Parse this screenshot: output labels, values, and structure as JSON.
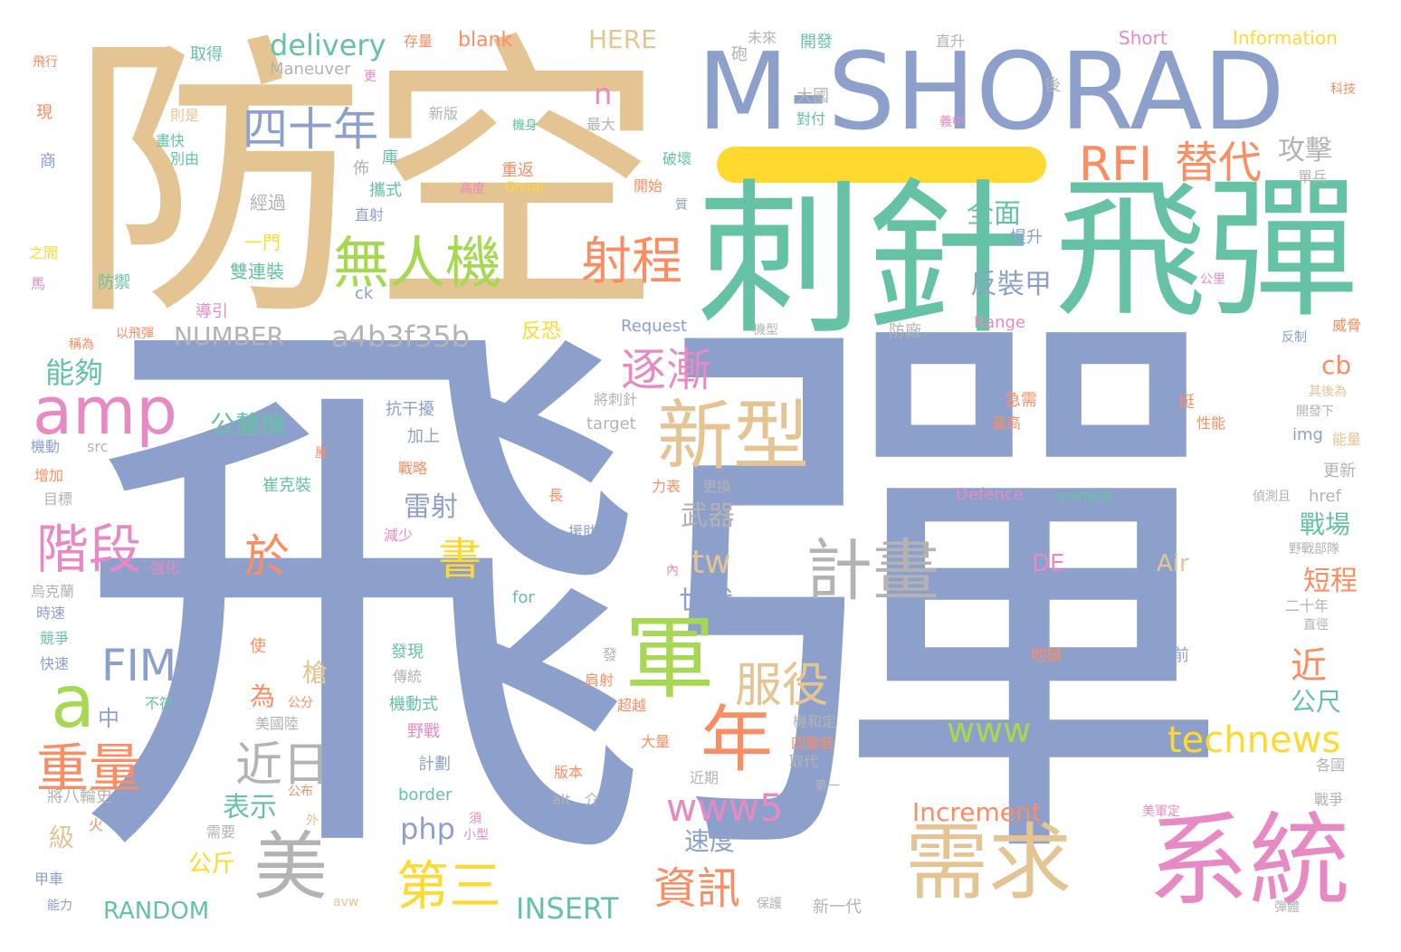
{
  "palette": {
    "blue": "#8da0cb",
    "green": "#66c2a5",
    "orange": "#fc8d62",
    "pink": "#e78ac3",
    "lime": "#a6d854",
    "yellow": "#ffd92f",
    "tan": "#e5c494",
    "grey": "#b3b3b3"
  },
  "words": {
    "w001": "飛彈",
    "w002": "防空",
    "w003": "M-SHORAD",
    "w004": "刺針",
    "w005": "飛彈",
    "w006": "系統",
    "w007": "需求",
    "w008": "美",
    "w009": "軍",
    "w010": "年",
    "w011": "新型",
    "w012": "計畫",
    "w013": "無人機",
    "w014": "射程",
    "w015": "RFI",
    "w016": "替代",
    "w017": "四十年",
    "w018": "amp",
    "w019": "a",
    "w020": "階段",
    "w021": "重量",
    "w022": "近日",
    "w023": "服役",
    "w024": "逐漸",
    "w025": "www5",
    "w026": "第三",
    "w027": "資訊",
    "w028": "technews",
    "w029": "www",
    "w030": "FIM",
    "w031": "於",
    "w032": "書",
    "w033": "a4b3f35b",
    "w034": "NUMBER",
    "w035": "delivery",
    "w036": "HERE",
    "w037": "blank",
    "w038": "Short",
    "w039": "Information",
    "w040": "攻擊",
    "w041": "全面",
    "w042": "反裝甲",
    "w043": "能夠",
    "w044": "n",
    "w045": "tw",
    "w046": "世代",
    "w047": "武器",
    "w048": "雷射",
    "w049": "公釐機",
    "w050": "戰場",
    "w051": "短程",
    "w052": "近",
    "w053": "公尺",
    "w054": "cb",
    "w055": "php",
    "w056": "INSERT",
    "w057": "RANDOM",
    "w058": "表示",
    "w059": "公斤",
    "w060": "速度",
    "w061": "Increment",
    "w062": "Air",
    "w063": "DE",
    "w064": "Defence",
    "w065": "zoneid",
    "w066": "Request",
    "w067": "Range",
    "w068": "反恐",
    "w069": "中",
    "w070": "為",
    "w071": "槍",
    "w072": "級",
    "w073": "雙連裝",
    "w074": "一門",
    "w075": "經過",
    "w076": "攜式",
    "w077": "重返",
    "w078": "提升",
    "w079": "img",
    "w080": "href",
    "w081": "target",
    "w082": "src",
    "w083": "for",
    "w084": "border",
    "w085": "Group",
    "w086": "Maneuver",
    "w087": "地獄",
    "w088": "之前",
    "w089": "更新",
    "w090": "能量",
    "w091": "取得",
    "w092": "存量",
    "w093": "開發",
    "w094": "未來",
    "w095": "大國",
    "w096": "對付",
    "w097": "最大",
    "w098": "機身",
    "w099": "新版",
    "w100": "破壞",
    "w101": "開始",
    "w102": "高度",
    "w103": "直射",
    "w104": "佈",
    "w105": "庫",
    "w106": "則是",
    "w107": "畫快",
    "w108": "別由",
    "w109": "防禦",
    "w110": "導引",
    "w111": "以飛彈",
    "w112": "稱為",
    "w113": "飛行",
    "w114": "現",
    "w115": "商",
    "w116": "之間",
    "w117": "馬",
    "w118": "機動",
    "w119": "增加",
    "w120": "目標",
    "w121": "強化",
    "w122": "烏克蘭",
    "w123": "時速",
    "w124": "競爭",
    "w125": "快速",
    "w126": "不符",
    "w127": "公分",
    "w128": "美國陸",
    "w129": "將八輪史",
    "w130": "火",
    "w131": "需要",
    "w132": "甲車",
    "w133": "能力",
    "w134": "avw",
    "w135": "小型",
    "w136": "須",
    "w137": "外",
    "w138": "公布",
    "w139": "保護",
    "w140": "新一代",
    "w141": "alt",
    "w142": "介",
    "w143": "版本",
    "w144": "大量",
    "w145": "近期",
    "w146": "取代",
    "w147": "第一",
    "w148": "四聯裝",
    "w149": "機和定",
    "w150": "超越",
    "w151": "肩射",
    "w152": "發",
    "w153": "傳統",
    "w154": "機動式",
    "w155": "野戰",
    "w156": "計劃",
    "w157": "發現",
    "w158": "長",
    "w159": "援助",
    "w160": "減少",
    "w161": "機外",
    "w162": "戰略",
    "w163": "加上",
    "w164": "抗干擾",
    "w165": "崔克裝",
    "w166": "更換",
    "w167": "力表",
    "w168": "內",
    "w169": "將刺針",
    "w170": "防廠",
    "w171": "機型",
    "w172": "急需",
    "w173": "最高",
    "w174": "挺",
    "w175": "性能",
    "w176": "其後為",
    "w177": "開發下",
    "w178": "反制",
    "w179": "威脅",
    "w180": "偵測且",
    "w181": "野戰部隊",
    "w182": "二十年",
    "w183": "直徑",
    "w184": "各國",
    "w185": "戰爭",
    "w186": "美軍定",
    "w187": "彈體",
    "w188": "公里",
    "w189": "科技",
    "w190": "單兵",
    "w191": "義中",
    "w192": "後",
    "w193": "砲",
    "w194": "更",
    "w195": "直升",
    "w196": "屋",
    "w197": "質",
    "w198": "使",
    "w199": "ck"
  }
}
